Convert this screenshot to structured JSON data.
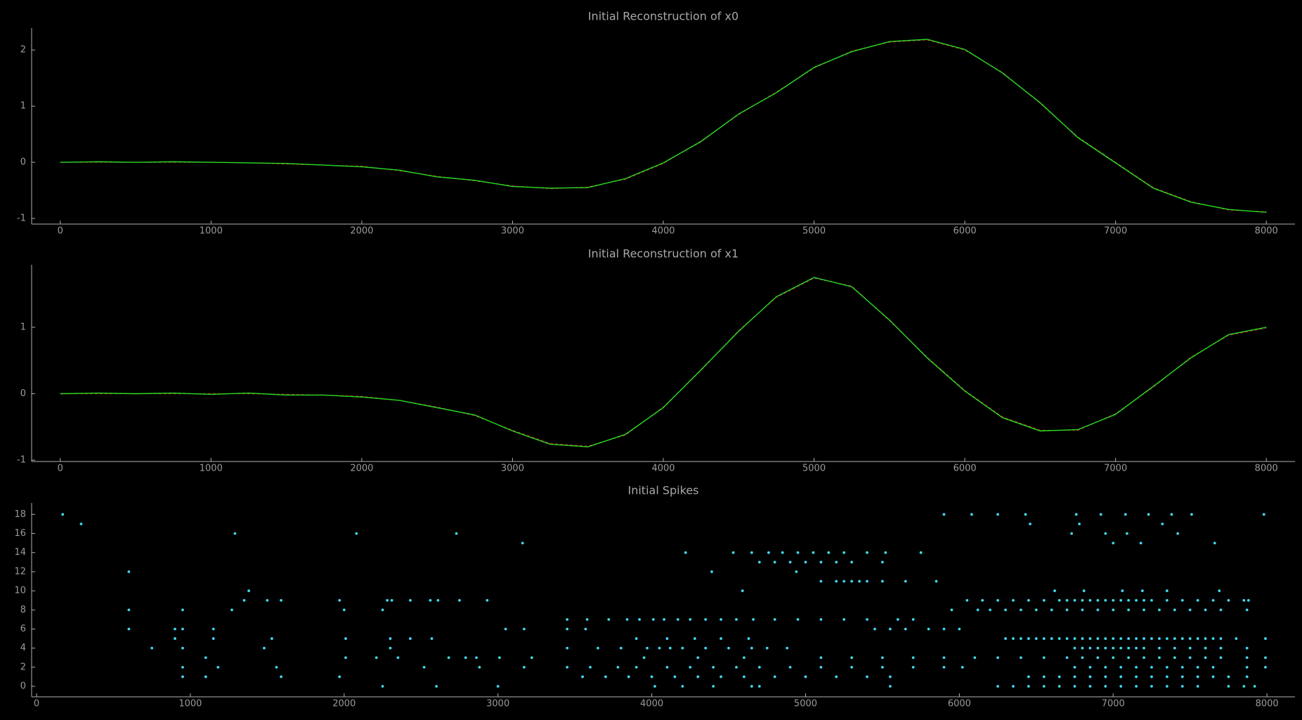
{
  "chart_data": [
    {
      "type": "line",
      "title": "Initial Reconstruction of x0",
      "x": [
        0,
        250,
        500,
        750,
        1000,
        1250,
        1500,
        1750,
        2000,
        2250,
        2500,
        2750,
        3000,
        3250,
        3500,
        3750,
        4000,
        4250,
        4500,
        4750,
        5000,
        5250,
        5500,
        5750,
        6000,
        6250,
        6500,
        6750,
        7000,
        7250,
        7500,
        7750,
        8000
      ],
      "series": [
        {
          "color": "#d62728",
          "values": [
            0,
            0,
            0,
            0,
            0,
            -0.01,
            -0.03,
            -0.05,
            -0.07,
            -0.15,
            -0.25,
            -0.33,
            -0.42,
            -0.47,
            -0.44,
            -0.3,
            -0.02,
            0.38,
            0.85,
            1.25,
            1.68,
            1.98,
            2.14,
            2.18,
            2.0,
            1.6,
            1.05,
            0.45,
            0.0,
            -0.45,
            -0.7,
            -0.85,
            -0.88
          ]
        },
        {
          "color": "#22dd22",
          "values": [
            0,
            0.01,
            0,
            0.01,
            0,
            -0.01,
            -0.02,
            -0.05,
            -0.08,
            -0.14,
            -0.26,
            -0.32,
            -0.43,
            -0.46,
            -0.45,
            -0.29,
            -0.01,
            0.37,
            0.86,
            1.24,
            1.69,
            1.97,
            2.15,
            2.19,
            2.01,
            1.59,
            1.06,
            0.44,
            -0.01,
            -0.46,
            -0.71,
            -0.84,
            -0.89
          ]
        }
      ],
      "xlim": [
        -190,
        8190
      ],
      "xticks": [
        0,
        1000,
        2000,
        3000,
        4000,
        5000,
        6000,
        7000,
        8000
      ],
      "ylim": [
        -1.1,
        2.39
      ],
      "yticks": [
        -1,
        0,
        1,
        2
      ]
    },
    {
      "type": "line",
      "title": "Initial Reconstruction of x1",
      "x": [
        0,
        250,
        500,
        750,
        1000,
        1250,
        1500,
        1750,
        2000,
        2250,
        2500,
        2750,
        3000,
        3250,
        3500,
        3750,
        4000,
        4250,
        4500,
        4750,
        5000,
        5250,
        5500,
        5750,
        6000,
        6250,
        6500,
        6750,
        7000,
        7250,
        7500,
        7750,
        8000
      ],
      "series": [
        {
          "color": "#d62728",
          "values": [
            0,
            0,
            0,
            0,
            0,
            0,
            -0.01,
            -0.02,
            -0.04,
            -0.1,
            -0.2,
            -0.33,
            -0.55,
            -0.75,
            -0.79,
            -0.62,
            -0.2,
            0.35,
            0.95,
            1.45,
            1.74,
            1.62,
            1.1,
            0.55,
            0.05,
            -0.35,
            -0.55,
            -0.55,
            -0.3,
            0.1,
            0.55,
            0.88,
            0.99
          ]
        },
        {
          "color": "#22dd22",
          "values": [
            0,
            0.01,
            0,
            0.01,
            -0.01,
            0.01,
            -0.02,
            -0.02,
            -0.05,
            -0.1,
            -0.21,
            -0.32,
            -0.56,
            -0.76,
            -0.8,
            -0.61,
            -0.21,
            0.36,
            0.94,
            1.46,
            1.75,
            1.61,
            1.11,
            0.54,
            0.04,
            -0.36,
            -0.56,
            -0.54,
            -0.31,
            0.11,
            0.54,
            0.89,
            1.0
          ]
        }
      ],
      "xlim": [
        -190,
        8190
      ],
      "xticks": [
        0,
        1000,
        2000,
        3000,
        4000,
        5000,
        6000,
        7000,
        8000
      ],
      "ylim": [
        -1.02,
        1.94
      ],
      "yticks": [
        -1,
        0,
        1
      ]
    },
    {
      "type": "scatter",
      "title": "Initial Spikes",
      "color": "#3fd8ee",
      "x": [
        170,
        290,
        600,
        600,
        600,
        750,
        900,
        900,
        950,
        950,
        950,
        950,
        950,
        1100,
        1100,
        1150,
        1150,
        1180,
        1270,
        1290,
        1350,
        1380,
        1480,
        1500,
        1530,
        1560,
        1590,
        1590,
        1970,
        1970,
        2000,
        2010,
        2010,
        2080,
        2210,
        2250,
        2250,
        2280,
        2300,
        2300,
        2310,
        2350,
        2430,
        2430,
        2520,
        2560,
        2570,
        2600,
        2610,
        2680,
        2730,
        2750,
        2790,
        2860,
        2880,
        2930,
        3000,
        3010,
        3050,
        3160,
        3170,
        3170,
        3220,
        3450,
        3580,
        3720,
        3840,
        3920,
        4010,
        4080,
        4170,
        4250,
        4350,
        4450,
        4550,
        4660,
        4800,
        4950,
        5100,
        5250,
        5400,
        5600,
        5700,
        3450,
        3570,
        5450,
        5550,
        5650,
        5800,
        5900,
        6000,
        3450,
        3650,
        3800,
        3970,
        4050,
        4120,
        4200,
        4350,
        4500,
        4650,
        4750,
        4880,
        3950,
        4300,
        4600,
        5100,
        5300,
        5500,
        5700,
        5900,
        6100,
        3450,
        3600,
        3780,
        3900,
        4100,
        4250,
        4400,
        4550,
        4700,
        4900,
        5100,
        5300,
        5500,
        5700,
        5900,
        3550,
        3700,
        3850,
        4000,
        4150,
        4300,
        4450,
        4600,
        4800,
        5000,
        5200,
        5400,
        5550,
        4020,
        4200,
        4400,
        4650,
        4700,
        5550,
        3900,
        4100,
        4280,
        4450,
        4630,
        4220,
        4530,
        4650,
        4760,
        4850,
        4950,
        5050,
        5150,
        5250,
        5400,
        5520,
        5750,
        4700,
        4800,
        4900,
        5000,
        5100,
        5200,
        5300,
        5500,
        4390,
        4940,
        5100,
        5200,
        5250,
        5300,
        5350,
        5400,
        5500,
        5650,
        5850,
        4590,
        6620,
        6810,
        7060,
        7190,
        7350,
        7690,
        5900,
        6080,
        6250,
        6430,
        6760,
        6920,
        7080,
        7230,
        7380,
        7510,
        7980,
        6460,
        6780,
        7320,
        6730,
        6950,
        7090,
        7420,
        7000,
        7180,
        7660,
        6050,
        6150,
        6250,
        6350,
        6450,
        6550,
        6650,
        6700,
        6750,
        6800,
        6850,
        6900,
        6950,
        7000,
        7050,
        7100,
        7150,
        7200,
        7250,
        7350,
        7450,
        7550,
        7650,
        7750,
        7850,
        7880,
        5950,
        6120,
        6200,
        6300,
        6400,
        6500,
        6600,
        6700,
        6800,
        6900,
        7000,
        7100,
        7200,
        7300,
        7400,
        7500,
        7600,
        7700,
        7870,
        6300,
        6350,
        6400,
        6450,
        6500,
        6550,
        6600,
        6650,
        6700,
        6750,
        6800,
        6850,
        6900,
        6950,
        7000,
        7050,
        7100,
        7150,
        7200,
        7250,
        7300,
        7350,
        7400,
        7450,
        7500,
        7550,
        7600,
        7650,
        7700,
        7800,
        7990,
        6750,
        6800,
        6850,
        6900,
        6950,
        7000,
        7050,
        7100,
        7150,
        7200,
        7300,
        7400,
        7500,
        7600,
        7700,
        7870,
        6250,
        6400,
        6550,
        6700,
        6800,
        6900,
        7000,
        7100,
        7200,
        7300,
        7400,
        7500,
        7600,
        7700,
        7870,
        7990,
        6020,
        6750,
        6850,
        6950,
        7050,
        7150,
        7250,
        7350,
        7450,
        7550,
        7650,
        7870,
        7990,
        6450,
        6550,
        6650,
        6750,
        6850,
        6950,
        7050,
        7150,
        7250,
        7350,
        7450,
        7550,
        7650,
        7750,
        7870,
        6250,
        6350,
        6450,
        6550,
        6650,
        6750,
        6850,
        6950,
        7050,
        7150,
        7250,
        7350,
        7450,
        7550,
        7750,
        7850,
        7920
      ],
      "values": [
        18,
        17,
        12,
        8,
        6,
        4,
        6,
        5,
        8,
        6,
        4,
        2,
        1,
        3,
        1,
        6,
        5,
        2,
        8,
        16,
        9,
        10,
        4,
        9,
        5,
        2,
        9,
        1,
        9,
        1,
        8,
        5,
        3,
        16,
        3,
        8,
        0,
        9,
        5,
        4,
        9,
        3,
        9,
        5,
        2,
        9,
        5,
        0,
        9,
        3,
        16,
        9,
        3,
        3,
        2,
        9,
        0,
        3,
        6,
        15,
        6,
        2,
        3,
        7,
        7,
        7,
        7,
        7,
        7,
        7,
        7,
        7,
        7,
        7,
        7,
        7,
        7,
        7,
        7,
        7,
        7,
        7,
        7,
        6,
        6,
        6,
        6,
        6,
        6,
        6,
        6,
        4,
        4,
        4,
        4,
        4,
        4,
        4,
        4,
        4,
        4,
        4,
        4,
        3,
        3,
        3,
        3,
        3,
        3,
        3,
        3,
        3,
        2,
        2,
        2,
        2,
        2,
        2,
        2,
        2,
        2,
        2,
        2,
        2,
        2,
        2,
        2,
        1,
        1,
        1,
        1,
        1,
        1,
        1,
        1,
        1,
        1,
        1,
        1,
        1,
        0,
        0,
        0,
        0,
        0,
        0,
        5,
        5,
        5,
        5,
        5,
        14,
        14,
        14,
        14,
        14,
        14,
        14,
        14,
        14,
        14,
        14,
        14,
        13,
        13,
        13,
        13,
        13,
        13,
        13,
        13,
        12,
        12,
        11,
        11,
        11,
        11,
        11,
        11,
        11,
        11,
        11,
        10,
        10,
        10,
        10,
        10,
        10,
        10,
        18,
        18,
        18,
        18,
        18,
        18,
        18,
        18,
        18,
        18,
        18,
        17,
        17,
        17,
        16,
        16,
        16,
        16,
        15,
        15,
        15,
        9,
        9,
        9,
        9,
        9,
        9,
        9,
        9,
        9,
        9,
        9,
        9,
        9,
        9,
        9,
        9,
        9,
        9,
        9,
        9,
        9,
        9,
        9,
        9,
        9,
        9,
        8,
        8,
        8,
        8,
        8,
        8,
        8,
        8,
        8,
        8,
        8,
        8,
        8,
        8,
        8,
        8,
        8,
        8,
        8,
        5,
        5,
        5,
        5,
        5,
        5,
        5,
        5,
        5,
        5,
        5,
        5,
        5,
        5,
        5,
        5,
        5,
        5,
        5,
        5,
        5,
        5,
        5,
        5,
        5,
        5,
        5,
        5,
        5,
        5,
        5,
        4,
        4,
        4,
        4,
        4,
        4,
        4,
        4,
        4,
        4,
        4,
        4,
        4,
        4,
        4,
        4,
        3,
        3,
        3,
        3,
        3,
        3,
        3,
        3,
        3,
        3,
        3,
        3,
        3,
        3,
        3,
        3,
        2,
        2,
        2,
        2,
        2,
        2,
        2,
        2,
        2,
        2,
        2,
        2,
        2,
        1,
        1,
        1,
        1,
        1,
        1,
        1,
        1,
        1,
        1,
        1,
        1,
        1,
        1,
        1,
        0,
        0,
        0,
        0,
        0,
        0,
        0,
        0,
        0,
        0,
        0,
        0,
        0,
        0,
        0,
        0,
        0
      ],
      "xlim": [
        -32,
        8182
      ],
      "xticks": [
        0,
        1000,
        2000,
        3000,
        4000,
        5000,
        6000,
        7000,
        8000
      ],
      "ylim": [
        -1.1,
        19.2
      ],
      "yticks": [
        0,
        2,
        4,
        6,
        8,
        10,
        12,
        14,
        16,
        18
      ]
    }
  ]
}
